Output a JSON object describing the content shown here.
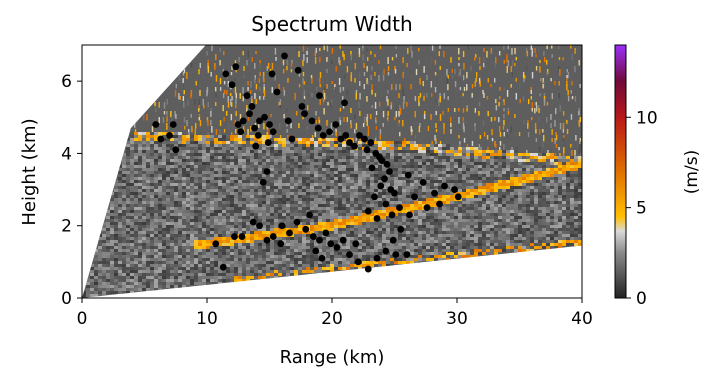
{
  "chart_data": {
    "type": "scatter",
    "title": "Spectrum Width",
    "xlabel": "Range (km)",
    "ylabel": "Height (km)",
    "xlim": [
      0,
      40
    ],
    "ylim": [
      0,
      7
    ],
    "xticks": [
      0,
      10,
      20,
      30,
      40
    ],
    "yticks": [
      0,
      2,
      4,
      6
    ],
    "grid": false,
    "background_field": {
      "description": "radar range-height scan shaded by spectrum width",
      "scan_edges": [
        [
          0,
          0
        ],
        [
          40,
          1.45
        ],
        [
          40,
          7
        ],
        [
          9.9,
          7
        ],
        [
          3.9,
          4.7
        ]
      ],
      "bright_layer_band": [
        [
          10,
          1.5
        ],
        [
          20,
          2.0
        ],
        [
          30,
          2.8
        ],
        [
          40,
          3.7
        ]
      ],
      "colormap_stops": [
        {
          "value": 0,
          "color": "#222222"
        },
        {
          "value": 2.5,
          "color": "#8a8a8a"
        },
        {
          "value": 3.7,
          "color": "#d9d9d9"
        },
        {
          "value": 4.5,
          "color": "#ffbf00"
        },
        {
          "value": 7,
          "color": "#e07000"
        },
        {
          "value": 10,
          "color": "#b81818"
        },
        {
          "value": 12,
          "color": "#700a3a"
        },
        {
          "value": 14,
          "color": "#9b30ff"
        }
      ]
    },
    "colorbar": {
      "label": "(m/s)",
      "range": [
        0,
        14
      ],
      "ticks": [
        0,
        5,
        10
      ]
    },
    "series": [
      {
        "marker": "filled-circle",
        "color": "#000000",
        "points": [
          [
            11.5,
            6.2
          ],
          [
            12.3,
            6.4
          ],
          [
            12.0,
            5.9
          ],
          [
            13.2,
            5.6
          ],
          [
            13.6,
            5.3
          ],
          [
            13.4,
            5.1
          ],
          [
            12.9,
            4.9
          ],
          [
            12.5,
            4.8
          ],
          [
            13.8,
            4.7
          ],
          [
            14.2,
            4.9
          ],
          [
            14.6,
            5.0
          ],
          [
            15.0,
            4.8
          ],
          [
            15.3,
            4.6
          ],
          [
            14.1,
            4.5
          ],
          [
            14.9,
            4.3
          ],
          [
            12.7,
            4.6
          ],
          [
            15.6,
            5.7
          ],
          [
            15.2,
            6.2
          ],
          [
            16.2,
            6.7
          ],
          [
            17.3,
            6.3
          ],
          [
            17.8,
            5.1
          ],
          [
            18.4,
            4.9
          ],
          [
            18.9,
            4.7
          ],
          [
            19.3,
            4.5
          ],
          [
            19.8,
            4.6
          ],
          [
            20.3,
            4.8
          ],
          [
            20.7,
            4.4
          ],
          [
            21.1,
            4.5
          ],
          [
            21.4,
            4.3
          ],
          [
            21.8,
            4.2
          ],
          [
            22.2,
            4.5
          ],
          [
            22.6,
            4.4
          ],
          [
            22.8,
            4.1
          ],
          [
            23.1,
            4.3
          ],
          [
            23.5,
            4.0
          ],
          [
            23.8,
            3.9
          ],
          [
            24.0,
            3.8
          ],
          [
            24.4,
            3.7
          ],
          [
            23.2,
            3.6
          ],
          [
            24.6,
            3.5
          ],
          [
            24.2,
            3.3
          ],
          [
            23.9,
            3.1
          ],
          [
            24.7,
            3.0
          ],
          [
            23.4,
            2.8
          ],
          [
            24.3,
            2.6
          ],
          [
            25.0,
            2.9
          ],
          [
            25.4,
            2.5
          ],
          [
            24.8,
            2.3
          ],
          [
            23.6,
            2.2
          ],
          [
            22.9,
            2.4
          ],
          [
            21.0,
            5.4
          ],
          [
            19.0,
            5.6
          ],
          [
            17.6,
            5.3
          ],
          [
            16.5,
            4.9
          ],
          [
            16.8,
            4.4
          ],
          [
            26.1,
            3.4
          ],
          [
            27.3,
            3.2
          ],
          [
            28.2,
            2.9
          ],
          [
            29.0,
            3.1
          ],
          [
            29.8,
            3.0
          ],
          [
            28.6,
            2.6
          ],
          [
            27.6,
            2.5
          ],
          [
            26.6,
            2.8
          ],
          [
            26.2,
            2.3
          ],
          [
            30.1,
            2.8
          ],
          [
            17.2,
            2.1
          ],
          [
            17.9,
            1.9
          ],
          [
            18.5,
            1.7
          ],
          [
            19.0,
            1.6
          ],
          [
            19.5,
            1.8
          ],
          [
            19.9,
            1.5
          ],
          [
            20.4,
            1.4
          ],
          [
            18.7,
            1.3
          ],
          [
            19.2,
            1.1
          ],
          [
            20.9,
            1.6
          ],
          [
            16.6,
            1.8
          ],
          [
            16.0,
            2.0
          ],
          [
            15.3,
            1.7
          ],
          [
            14.8,
            1.6
          ],
          [
            21.4,
            1.2
          ],
          [
            22.1,
            1.0
          ],
          [
            22.9,
            0.8
          ],
          [
            23.6,
            1.1
          ],
          [
            24.3,
            1.3
          ],
          [
            25.1,
            1.2
          ],
          [
            26.0,
            1.2
          ],
          [
            21.9,
            1.5
          ],
          [
            24.9,
            1.6
          ],
          [
            14.2,
            2.0
          ],
          [
            12.8,
            1.7
          ],
          [
            12.2,
            1.7
          ],
          [
            10.7,
            1.5
          ],
          [
            11.3,
            0.85
          ],
          [
            13.7,
            2.1
          ],
          [
            18.2,
            2.3
          ],
          [
            5.9,
            4.8
          ],
          [
            7.3,
            4.8
          ],
          [
            7.5,
            4.1
          ],
          [
            6.3,
            4.4
          ],
          [
            7.0,
            4.5
          ],
          [
            14.8,
            3.5
          ],
          [
            14.5,
            3.2
          ],
          [
            13.9,
            4.2
          ],
          [
            15.9,
            1.5
          ],
          [
            25.5,
            1.9
          ]
        ]
      }
    ]
  }
}
